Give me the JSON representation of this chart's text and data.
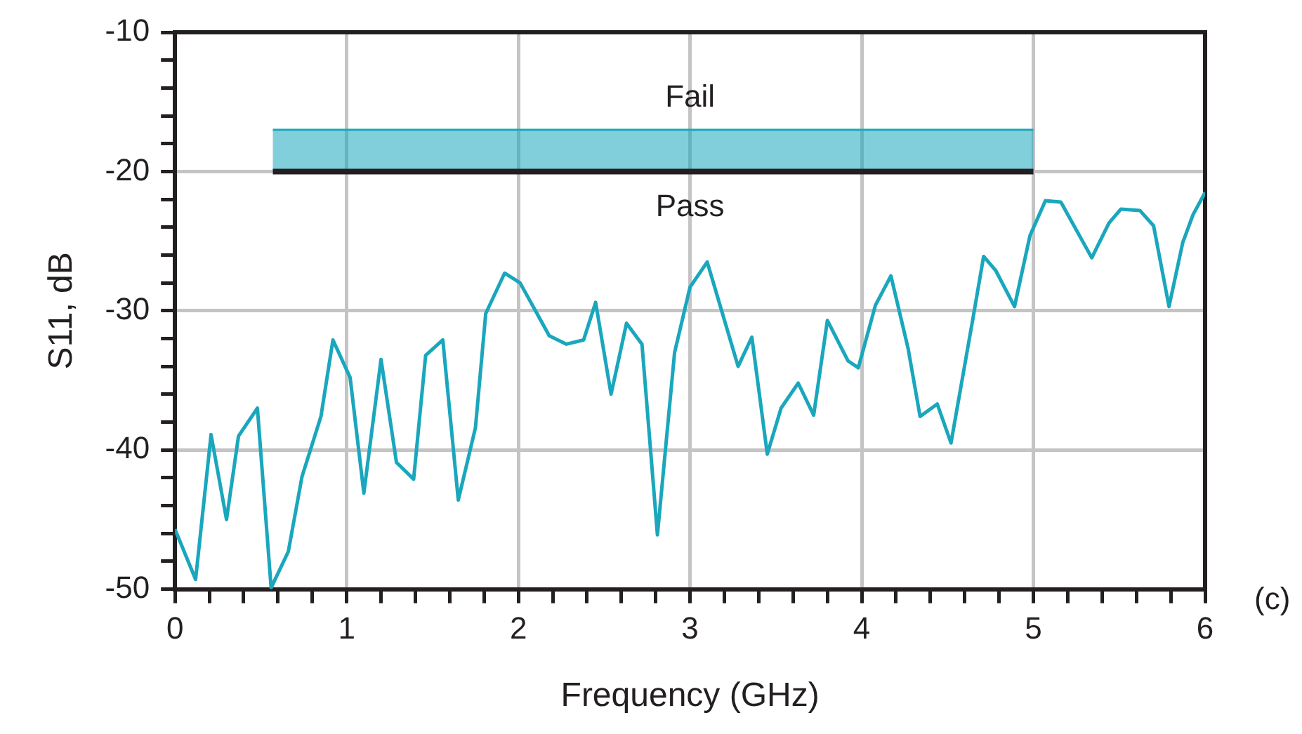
{
  "chart_data": {
    "type": "line",
    "xlabel": "Frequency (GHz)",
    "ylabel": "S11, dB",
    "xlim": [
      0,
      6
    ],
    "ylim": [
      -50,
      -10
    ],
    "xticks": [
      0,
      {
        "value": 0.2,
        "label": null
      },
      {
        "value": 0.4,
        "label": null
      },
      {
        "value": 0.6,
        "label": null
      },
      {
        "value": 0.8,
        "label": null
      },
      1,
      {
        "value": 1.2,
        "label": null
      },
      {
        "value": 1.4,
        "label": null
      },
      {
        "value": 1.6,
        "label": null
      },
      {
        "value": 1.8,
        "label": null
      },
      2,
      {
        "value": 2.2,
        "label": null
      },
      {
        "value": 2.4,
        "label": null
      },
      {
        "value": 2.6,
        "label": null
      },
      {
        "value": 2.8,
        "label": null
      },
      3,
      {
        "value": 3.2,
        "label": null
      },
      {
        "value": 3.4,
        "label": null
      },
      {
        "value": 3.6,
        "label": null
      },
      {
        "value": 3.8,
        "label": null
      },
      4,
      {
        "value": 4.2,
        "label": null
      },
      {
        "value": 4.4,
        "label": null
      },
      {
        "value": 4.6,
        "label": null
      },
      {
        "value": 4.8,
        "label": null
      },
      5,
      {
        "value": 5.2,
        "label": null
      },
      {
        "value": 5.4,
        "label": null
      },
      {
        "value": 5.6,
        "label": null
      },
      {
        "value": 5.8,
        "label": null
      },
      6
    ],
    "yticks": [
      -50,
      {
        "value": -48,
        "label": null
      },
      {
        "value": -46,
        "label": null
      },
      {
        "value": -44,
        "label": null
      },
      {
        "value": -42,
        "label": null
      },
      -40,
      {
        "value": -38,
        "label": null
      },
      {
        "value": -36,
        "label": null
      },
      {
        "value": -34,
        "label": null
      },
      {
        "value": -32,
        "label": null
      },
      -30,
      {
        "value": -28,
        "label": null
      },
      {
        "value": -26,
        "label": null
      },
      {
        "value": -24,
        "label": null
      },
      {
        "value": -22,
        "label": null
      },
      -20,
      {
        "value": -18,
        "label": null
      },
      {
        "value": -16,
        "label": null
      },
      {
        "value": -14,
        "label": null
      },
      {
        "value": -12,
        "label": null
      },
      -10
    ],
    "grid": true,
    "legend": false,
    "marker": "none",
    "line_style": "solid",
    "series": [
      {
        "color": "#1aa7bd",
        "x": [
          0,
          0.12,
          0.21,
          0.3,
          0.37,
          0.48,
          0.56,
          0.66,
          0.74,
          0.85,
          0.92,
          1.02,
          1.1,
          1.2,
          1.29,
          1.39,
          1.46,
          1.56,
          1.65,
          1.75,
          1.81,
          1.92,
          2.01,
          2.18,
          2.28,
          2.38,
          2.45,
          2.54,
          2.63,
          2.72,
          2.81,
          2.91,
          3.0,
          3.1,
          3.28,
          3.36,
          3.45,
          3.53,
          3.63,
          3.72,
          3.8,
          3.92,
          3.98,
          4.08,
          4.17,
          4.27,
          4.34,
          4.44,
          4.52,
          4.65,
          4.71,
          4.78,
          4.89,
          4.98,
          5.07,
          5.16,
          5.34,
          5.44,
          5.51,
          5.62,
          5.7,
          5.79,
          5.87,
          5.93,
          6.0
        ],
        "values": [
          -45.7,
          -49.3,
          -38.9,
          -45.0,
          -39.0,
          -37.0,
          -49.9,
          -47.3,
          -41.9,
          -37.6,
          -32.1,
          -34.8,
          -43.1,
          -33.5,
          -40.9,
          -42.1,
          -33.2,
          -32.1,
          -43.6,
          -38.4,
          -30.2,
          -27.3,
          -28.0,
          -31.8,
          -32.4,
          -32.1,
          -29.4,
          -36.0,
          -30.9,
          -32.4,
          -46.1,
          -33.0,
          -28.3,
          -26.5,
          -34.0,
          -31.9,
          -40.3,
          -37.0,
          -35.2,
          -37.5,
          -30.7,
          -33.6,
          -34.1,
          -29.6,
          -27.5,
          -32.7,
          -37.6,
          -36.7,
          -39.5,
          -30.4,
          -26.1,
          -27.1,
          -29.7,
          -24.6,
          -22.1,
          -22.2,
          -26.2,
          -23.7,
          -22.7,
          -22.8,
          -23.9,
          -29.7,
          -25.1,
          -23.1,
          -21.5
        ]
      },
      {
        "color": "#1aa7bd",
        "x": [
          0.57,
          5
        ],
        "values": [
          -17,
          -17
        ],
        "lower": [
          -20,
          -20
        ],
        "upper": [
          -17,
          -17
        ]
      },
      {
        "color": "#231f20",
        "x": [
          0.57,
          5
        ],
        "values": [
          -20,
          -20
        ]
      }
    ],
    "annotations": [
      "Fail",
      "Pass",
      "(c)"
    ]
  }
}
